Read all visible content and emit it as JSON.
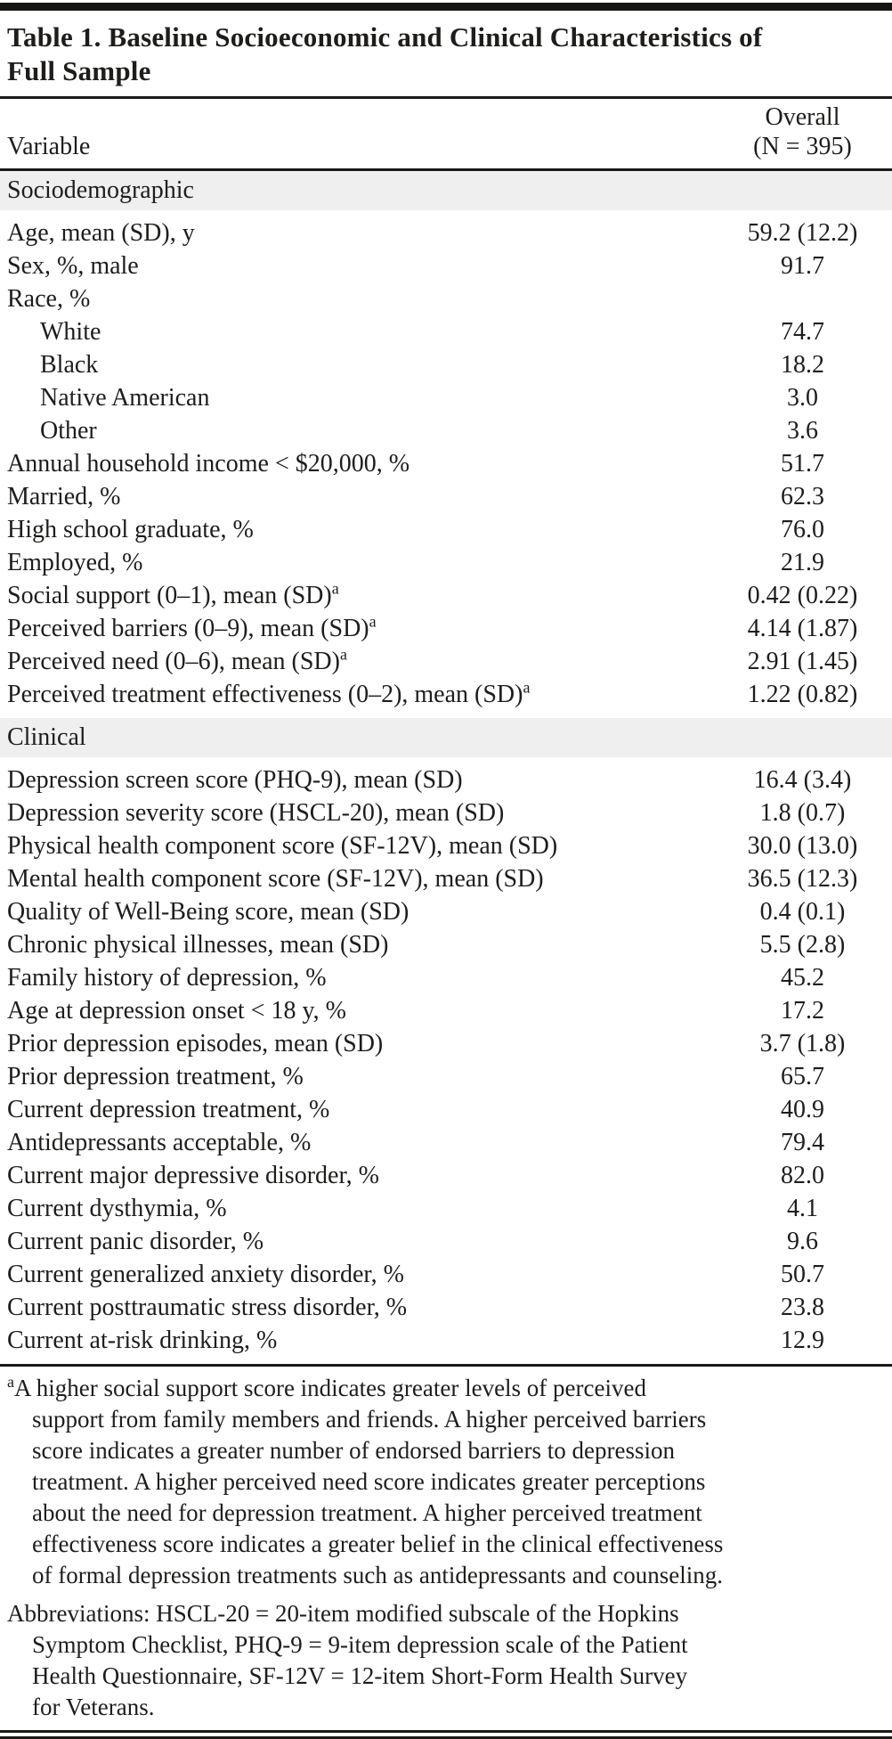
{
  "table": {
    "title_lines": [
      "Table 1. Baseline Socioeconomic and Clinical Characteristics of",
      "Full Sample"
    ],
    "columns": {
      "variable": "Variable",
      "overall_line1": "Overall",
      "overall_line2": "(N = 395)"
    },
    "colors": {
      "section_band": "#efefef",
      "rule": "#1a1918",
      "text": "#1e1d1b"
    },
    "sections": [
      {
        "header": "Sociodemographic",
        "rows": [
          {
            "label": "Age, mean (SD), y",
            "value": "59.2 (12.2)"
          },
          {
            "label": "Sex, %, male",
            "value": "91.7"
          },
          {
            "label": "Race, %",
            "value": ""
          },
          {
            "label": "White",
            "value": "74.7",
            "indent": true
          },
          {
            "label": "Black",
            "value": "18.2",
            "indent": true
          },
          {
            "label": "Native American",
            "value": "3.0",
            "indent": true
          },
          {
            "label": "Other",
            "value": "3.6",
            "indent": true
          },
          {
            "label": "Annual household income < $20,000, %",
            "value": "51.7"
          },
          {
            "label": "Married, %",
            "value": "62.3"
          },
          {
            "label": "High school graduate, %",
            "value": "76.0"
          },
          {
            "label": "Employed, %",
            "value": "21.9"
          },
          {
            "label": "Social support (0–1), mean (SD)",
            "sup": "a",
            "value": "0.42 (0.22)"
          },
          {
            "label": "Perceived barriers (0–9), mean (SD)",
            "sup": "a",
            "value": "4.14 (1.87)"
          },
          {
            "label": "Perceived need (0–6), mean (SD)",
            "sup": "a",
            "value": "2.91 (1.45)"
          },
          {
            "label": "Perceived treatment effectiveness (0–2), mean (SD)",
            "sup": "a",
            "value": "1.22 (0.82)"
          }
        ]
      },
      {
        "header": "Clinical",
        "rows": [
          {
            "label": "Depression screen score (PHQ-9), mean (SD)",
            "value": "16.4 (3.4)"
          },
          {
            "label": "Depression severity score (HSCL-20), mean (SD)",
            "value": "1.8 (0.7)"
          },
          {
            "label": "Physical health component score (SF-12V), mean (SD)",
            "value": "30.0 (13.0)"
          },
          {
            "label": "Mental health component score (SF-12V), mean (SD)",
            "value": "36.5 (12.3)"
          },
          {
            "label": "Quality of Well-Being score, mean (SD)",
            "value": "0.4 (0.1)"
          },
          {
            "label": "Chronic physical illnesses, mean (SD)",
            "value": "5.5 (2.8)"
          },
          {
            "label": "Family history of depression, %",
            "value": "45.2"
          },
          {
            "label": "Age at depression onset < 18 y, %",
            "value": "17.2"
          },
          {
            "label": "Prior depression episodes, mean (SD)",
            "value": "3.7 (1.8)"
          },
          {
            "label": "Prior depression treatment, %",
            "value": "65.7"
          },
          {
            "label": "Current depression treatment, %",
            "value": "40.9"
          },
          {
            "label": "Antidepressants acceptable, %",
            "value": "79.4"
          },
          {
            "label": "Current major depressive disorder, %",
            "value": "82.0"
          },
          {
            "label": "Current dysthymia, %",
            "value": "4.1"
          },
          {
            "label": "Current panic disorder, %",
            "value": "9.6"
          },
          {
            "label": "Current generalized anxiety disorder, %",
            "value": "50.7"
          },
          {
            "label": "Current posttraumatic stress disorder, %",
            "value": "23.8"
          },
          {
            "label": "Current at-risk drinking, %",
            "value": "12.9"
          }
        ]
      }
    ],
    "footnotes": [
      {
        "sup": "a",
        "lines": [
          "A higher social support score indicates greater levels of perceived",
          "support from family members and friends. A higher perceived barriers",
          "score indicates a greater number of endorsed barriers to depression",
          "treatment. A higher perceived need score indicates greater perceptions",
          "about the need for depression treatment. A higher perceived treatment",
          "effectiveness score indicates a greater belief in the clinical effectiveness",
          "of formal depression treatments such as antidepressants and counseling."
        ]
      },
      {
        "lines": [
          "Abbreviations: HSCL-20 = 20-item modified subscale of the Hopkins",
          "Symptom Checklist, PHQ-9 = 9-item depression scale of the Patient",
          "Health Questionnaire, SF-12V = 12-item Short-Form Health Survey",
          "for Veterans."
        ]
      }
    ]
  }
}
